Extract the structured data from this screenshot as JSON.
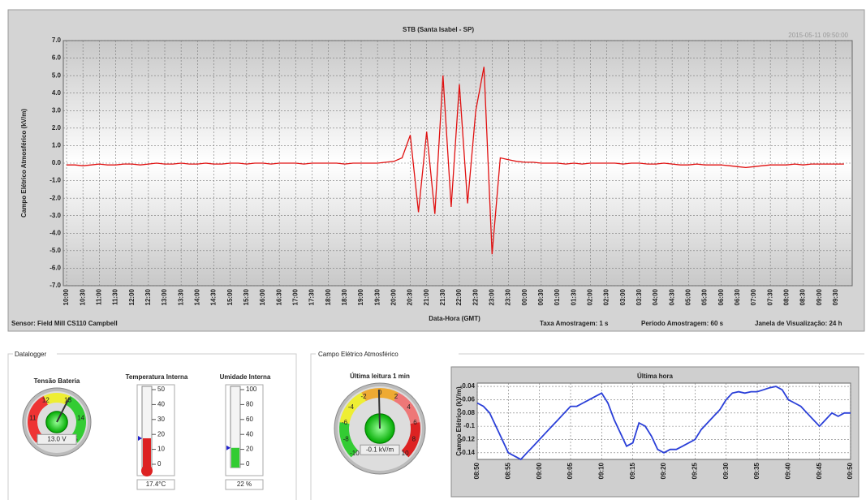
{
  "chart_data": [
    {
      "type": "line",
      "title": "STB (Santa Isabel - SP)",
      "timestamp": "2015-05-11 09:50:00",
      "ylabel": "Campo Elétrico Atmosférico (kV/m)",
      "xlabel": "Data-Hora (GMT)",
      "footer": {
        "sensor": "Sensor: Field Mill CS110 Campbell",
        "taxa": "Taxa Amostragem: 1 s",
        "periodo": "Período Amostragem: 60 s",
        "janela": "Janela de Visualização: 24 h"
      },
      "color": "#e01010",
      "grid": true,
      "ylim": [
        -7,
        7
      ],
      "yticks": [
        {
          "value": 7,
          "label": "7.0"
        },
        {
          "value": 6,
          "label": "6.0"
        },
        {
          "value": 5,
          "label": "5.0"
        },
        {
          "value": 4,
          "label": "4.0"
        },
        {
          "value": 3,
          "label": "3.0"
        },
        {
          "value": 2,
          "label": "2.0"
        },
        {
          "value": 1,
          "label": "1.0"
        },
        {
          "value": 0,
          "label": "0.0"
        },
        {
          "value": -1,
          "label": "-1.0"
        },
        {
          "value": -2,
          "label": "-2.0"
        },
        {
          "value": -3,
          "label": "-3.0"
        },
        {
          "value": -4,
          "label": "-4.0"
        },
        {
          "value": -5,
          "label": "-5.0"
        },
        {
          "value": -6,
          "label": "-6.0"
        },
        {
          "value": -7,
          "label": "-7.0"
        }
      ],
      "x": [
        "10:00",
        "10:15",
        "10:30",
        "10:45",
        "11:00",
        "11:15",
        "11:30",
        "11:45",
        "12:00",
        "12:15",
        "12:30",
        "12:45",
        "13:00",
        "13:15",
        "13:30",
        "13:45",
        "14:00",
        "14:15",
        "14:30",
        "14:45",
        "15:00",
        "15:15",
        "15:30",
        "15:45",
        "16:00",
        "16:15",
        "16:30",
        "16:45",
        "17:00",
        "17:15",
        "17:30",
        "17:45",
        "18:00",
        "18:15",
        "18:30",
        "18:45",
        "19:00",
        "19:15",
        "19:30",
        "19:45",
        "20:00",
        "20:15",
        "20:30",
        "20:45",
        "21:00",
        "21:15",
        "21:30",
        "21:45",
        "22:00",
        "22:15",
        "22:30",
        "22:45",
        "23:00",
        "23:15",
        "23:30",
        "23:45",
        "00:00",
        "00:15",
        "00:30",
        "00:45",
        "01:00",
        "01:15",
        "01:30",
        "01:45",
        "02:00",
        "02:15",
        "02:30",
        "02:45",
        "03:00",
        "03:15",
        "03:30",
        "03:45",
        "04:00",
        "04:15",
        "04:30",
        "04:45",
        "05:00",
        "05:15",
        "05:30",
        "05:45",
        "06:00",
        "06:15",
        "06:30",
        "06:45",
        "07:00",
        "07:15",
        "07:30",
        "07:45",
        "08:00",
        "08:15",
        "08:30",
        "08:45",
        "09:00",
        "09:15",
        "09:30",
        "09:45"
      ],
      "values": [
        -0.1,
        -0.1,
        -0.15,
        -0.1,
        -0.05,
        -0.1,
        -0.1,
        -0.05,
        -0.05,
        -0.1,
        -0.05,
        0.0,
        -0.05,
        -0.05,
        0.0,
        -0.05,
        -0.05,
        0.0,
        -0.05,
        -0.05,
        0.0,
        0.0,
        -0.05,
        0.0,
        0.0,
        -0.05,
        0.0,
        0.0,
        0.0,
        -0.05,
        0.0,
        0.0,
        0.0,
        0.0,
        -0.05,
        0.0,
        0.0,
        0.0,
        0.0,
        0.05,
        0.1,
        0.3,
        1.6,
        -2.8,
        1.8,
        -2.9,
        5.0,
        -2.5,
        4.5,
        -2.3,
        3.0,
        5.5,
        -5.2,
        0.3,
        0.2,
        0.1,
        0.05,
        0.05,
        0.0,
        0.0,
        0.0,
        -0.05,
        0.0,
        -0.05,
        0.0,
        0.0,
        0.0,
        0.0,
        -0.05,
        0.0,
        0.0,
        -0.05,
        -0.05,
        0.0,
        -0.05,
        -0.1,
        -0.1,
        -0.05,
        -0.1,
        -0.1,
        -0.1,
        -0.15,
        -0.2,
        -0.25,
        -0.2,
        -0.15,
        -0.1,
        -0.1,
        -0.1,
        -0.05,
        -0.1,
        -0.05,
        -0.05,
        -0.05,
        -0.05,
        -0.05
      ],
      "xticks": [
        "10:00",
        "10:30",
        "11:00",
        "11:30",
        "12:00",
        "12:30",
        "13:00",
        "13:30",
        "14:00",
        "14:30",
        "15:00",
        "15:30",
        "16:00",
        "16:30",
        "17:00",
        "17:30",
        "18:00",
        "18:30",
        "19:00",
        "19:30",
        "20:00",
        "20:30",
        "21:00",
        "21:30",
        "22:00",
        "22:30",
        "23:00",
        "23:30",
        "00:00",
        "00:30",
        "01:00",
        "01:30",
        "02:00",
        "02:30",
        "03:00",
        "03:30",
        "04:00",
        "04:30",
        "05:00",
        "05:30",
        "06:00",
        "06:30",
        "07:00",
        "07:30",
        "08:00",
        "08:30",
        "09:00",
        "09:30"
      ]
    },
    {
      "type": "line",
      "title": "Última hora",
      "ylabel": "Campo Elétrico (kV/m)",
      "color": "#2a3fd8",
      "grid": true,
      "ylim": [
        -0.15,
        -0.035
      ],
      "yticks": [
        -0.04,
        -0.06,
        -0.08,
        -0.1,
        -0.12,
        -0.14
      ],
      "x": [
        "08:50",
        "08:51",
        "08:52",
        "08:53",
        "08:54",
        "08:55",
        "08:56",
        "08:57",
        "08:58",
        "08:59",
        "09:00",
        "09:01",
        "09:02",
        "09:03",
        "09:04",
        "09:05",
        "09:06",
        "09:07",
        "09:08",
        "09:09",
        "09:10",
        "09:11",
        "09:12",
        "09:13",
        "09:14",
        "09:15",
        "09:16",
        "09:17",
        "09:18",
        "09:19",
        "09:20",
        "09:21",
        "09:22",
        "09:23",
        "09:24",
        "09:25",
        "09:26",
        "09:27",
        "09:28",
        "09:29",
        "09:30",
        "09:31",
        "09:32",
        "09:33",
        "09:34",
        "09:35",
        "09:36",
        "09:37",
        "09:38",
        "09:39",
        "09:40",
        "09:41",
        "09:42",
        "09:43",
        "09:44",
        "09:45",
        "09:46",
        "09:47",
        "09:48",
        "09:49",
        "09:50"
      ],
      "values": [
        -0.065,
        -0.07,
        -0.08,
        -0.1,
        -0.12,
        -0.14,
        -0.145,
        -0.15,
        -0.14,
        -0.13,
        -0.12,
        -0.11,
        -0.1,
        -0.09,
        -0.08,
        -0.07,
        -0.07,
        -0.065,
        -0.06,
        -0.055,
        -0.05,
        -0.065,
        -0.09,
        -0.11,
        -0.13,
        -0.125,
        -0.095,
        -0.1,
        -0.115,
        -0.135,
        -0.14,
        -0.135,
        -0.135,
        -0.13,
        -0.125,
        -0.12,
        -0.105,
        -0.095,
        -0.085,
        -0.075,
        -0.06,
        -0.05,
        -0.048,
        -0.05,
        -0.048,
        -0.048,
        -0.045,
        -0.042,
        -0.04,
        -0.045,
        -0.06,
        -0.065,
        -0.07,
        -0.08,
        -0.09,
        -0.1,
        -0.09,
        -0.08,
        -0.085,
        -0.08,
        -0.08
      ],
      "xticks": [
        "08:50",
        "08:55",
        "09:00",
        "09:05",
        "09:10",
        "09:15",
        "09:20",
        "09:25",
        "09:30",
        "09:35",
        "09:40",
        "09:45",
        "09:50"
      ]
    }
  ],
  "datalogger": {
    "title": "Datalogger",
    "battery": {
      "label": "Tensão Bateria",
      "ticks": [
        10,
        11,
        12,
        13,
        14,
        15
      ],
      "value": 13.0,
      "value_label": "13.0 V"
    },
    "temperature": {
      "label": "Temperatura Interna",
      "ticks": [
        50,
        40,
        30,
        20,
        10,
        0
      ],
      "value": 17.4,
      "value_label": "17.4°C"
    },
    "humidity": {
      "label": "Umidade Interna",
      "ticks": [
        100,
        80,
        60,
        40,
        20,
        0
      ],
      "value": 22,
      "value_label": "22 %"
    }
  },
  "campo": {
    "title": "Campo Elétrico Atmosférico",
    "gauge": {
      "label": "Última leitura 1 min",
      "ticks": [
        -10,
        -8,
        -6,
        -4,
        -2,
        0,
        2,
        4,
        6,
        8,
        10
      ],
      "value": -0.1,
      "value_label": "-0.1 kV/m"
    }
  }
}
